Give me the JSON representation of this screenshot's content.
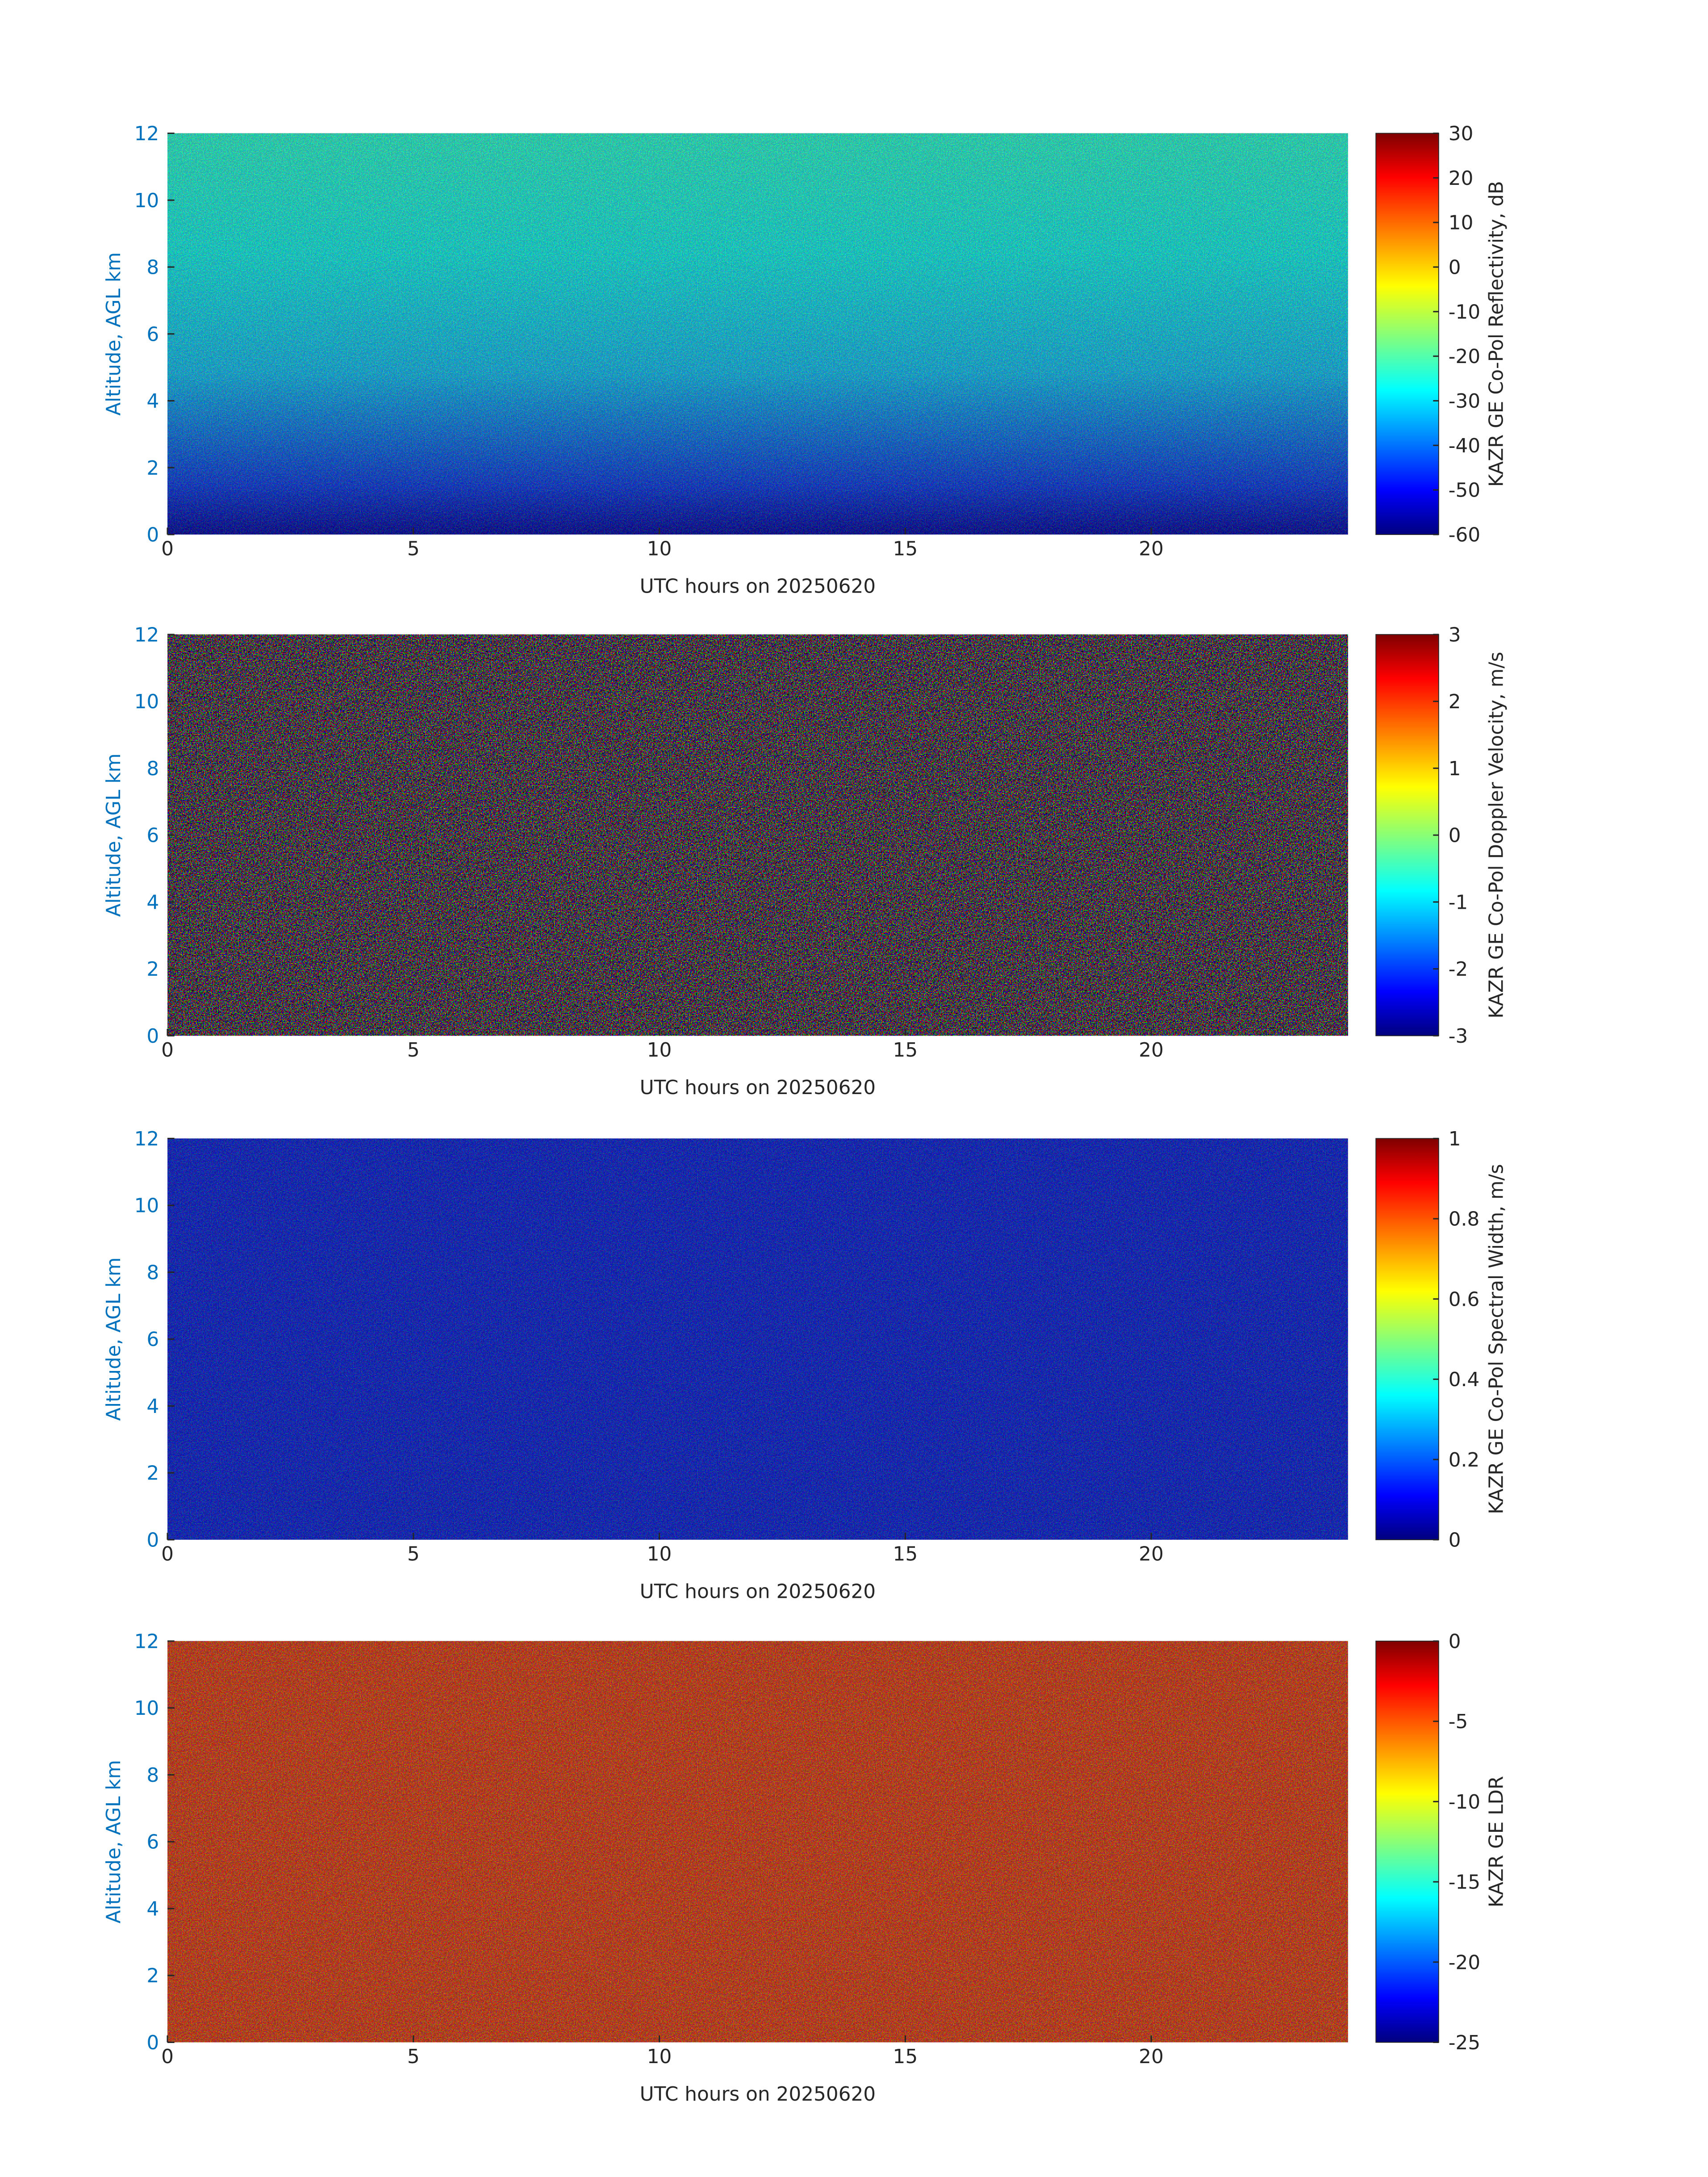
{
  "chart_data": [
    {
      "type": "heatmap",
      "xlabel": "UTC hours on 20250620",
      "ylabel": "Altitude, AGL km",
      "xlim": [
        0,
        24
      ],
      "xticks": [
        0,
        5,
        10,
        15,
        20
      ],
      "ylim": [
        0,
        12
      ],
      "yticks": [
        0,
        2,
        4,
        6,
        8,
        10,
        12
      ],
      "colormap": "jet",
      "clabel": "KAZR GE Co-Pol Reflectivity, dB",
      "clim": [
        -60,
        30
      ],
      "cticks": [
        -60,
        -50,
        -40,
        -30,
        -20,
        -10,
        0,
        10,
        20,
        30
      ]
    },
    {
      "type": "heatmap",
      "xlabel": "UTC hours on 20250620",
      "ylabel": "Altitude, AGL km",
      "xlim": [
        0,
        24
      ],
      "xticks": [
        0,
        5,
        10,
        15,
        20
      ],
      "ylim": [
        0,
        12
      ],
      "yticks": [
        0,
        2,
        4,
        6,
        8,
        10,
        12
      ],
      "colormap": "jet",
      "clabel": "KAZR GE Co-Pol Doppler Velocity, m/s",
      "clim": [
        -3,
        3
      ],
      "cticks": [
        -3,
        -2,
        -1,
        0,
        1,
        2,
        3
      ]
    },
    {
      "type": "heatmap",
      "xlabel": "UTC hours on 20250620",
      "ylabel": "Altitude, AGL km",
      "xlim": [
        0,
        24
      ],
      "xticks": [
        0,
        5,
        10,
        15,
        20
      ],
      "ylim": [
        0,
        12
      ],
      "yticks": [
        0,
        2,
        4,
        6,
        8,
        10,
        12
      ],
      "colormap": "jet",
      "clabel": "KAZR GE Co-Pol Spectral Width, m/s",
      "clim": [
        0,
        1
      ],
      "cticks": [
        0,
        0.2,
        0.4,
        0.6,
        0.8,
        1
      ]
    },
    {
      "type": "heatmap",
      "xlabel": "UTC hours on 20250620",
      "ylabel": "Altitude, AGL km",
      "xlim": [
        0,
        24
      ],
      "xticks": [
        0,
        5,
        10,
        15,
        20
      ],
      "ylim": [
        0,
        12
      ],
      "yticks": [
        0,
        2,
        4,
        6,
        8,
        10,
        12
      ],
      "colormap": "jet",
      "clabel": "KAZR GE LDR",
      "clim": [
        -25,
        0
      ],
      "cticks": [
        -25,
        -20,
        -15,
        -10,
        -5,
        0
      ]
    }
  ]
}
